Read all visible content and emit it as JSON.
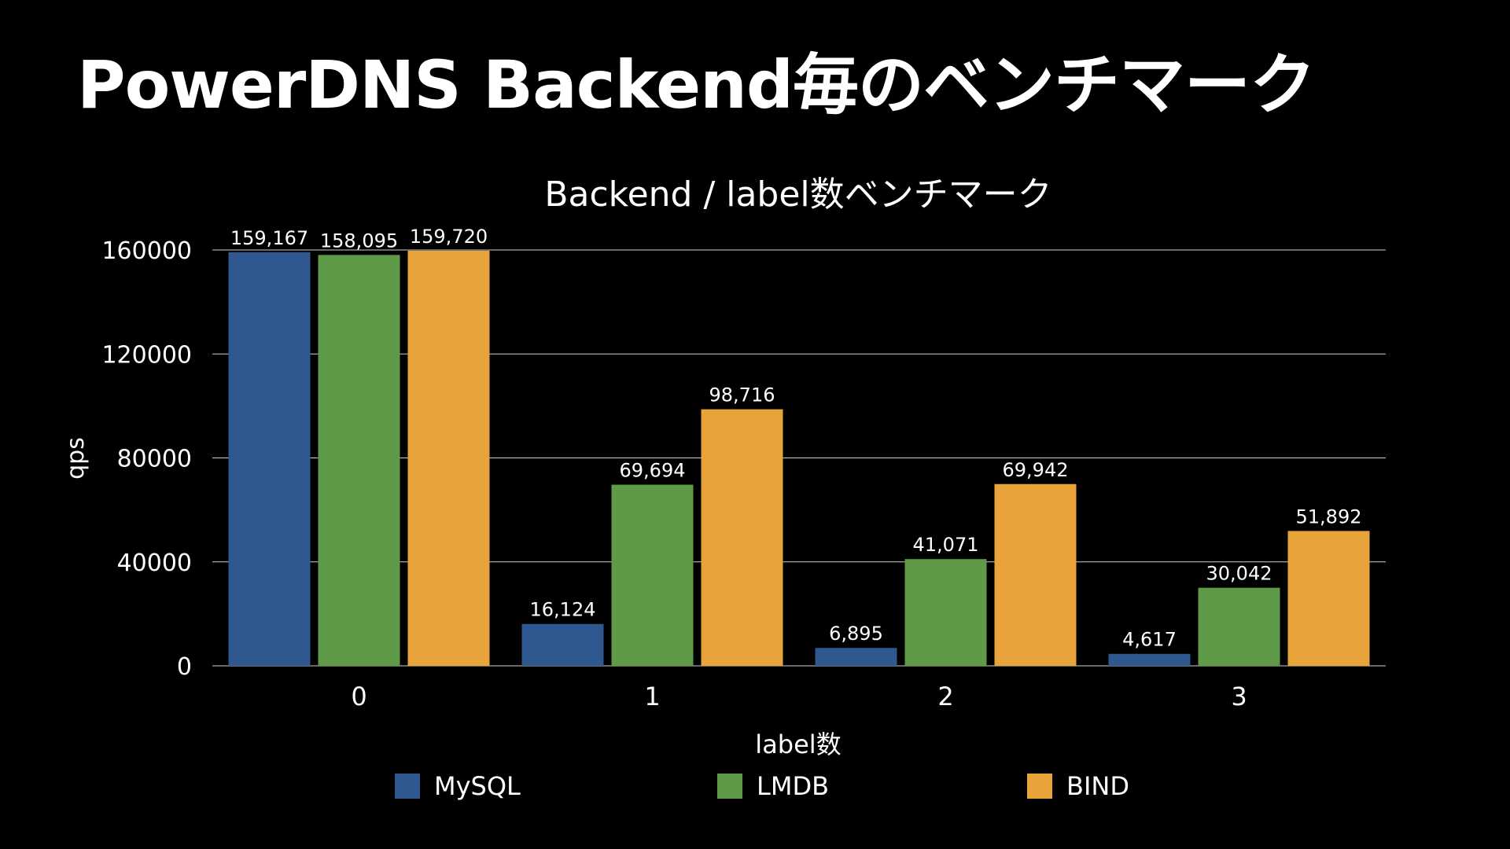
{
  "slide": {
    "title": "PowerDNS Backend毎のベンチマーク"
  },
  "chart_data": {
    "type": "bar",
    "title": "Backend / label数ベンチマーク",
    "xlabel": "label数",
    "ylabel": "qps",
    "categories": [
      "0",
      "1",
      "2",
      "3"
    ],
    "series": [
      {
        "name": "MySQL",
        "color": "#2f5790",
        "values": [
          159167,
          16124,
          6895,
          4617
        ],
        "labels": [
          "159,167",
          "16,124",
          "6,895",
          "4,617"
        ]
      },
      {
        "name": "LMDB",
        "color": "#5e9a48",
        "values": [
          158095,
          69694,
          41071,
          30042
        ],
        "labels": [
          "158,095",
          "69,694",
          "41,071",
          "30,042"
        ]
      },
      {
        "name": "BIND",
        "color": "#e8a33b",
        "values": [
          159720,
          98716,
          69942,
          51892
        ],
        "labels": [
          "159,720",
          "98,716",
          "69,942",
          "51,892"
        ]
      }
    ],
    "ylim": [
      0,
      160000
    ],
    "yticks": [
      "0",
      "40000",
      "80000",
      "120000",
      "160000"
    ],
    "grid": true,
    "legend": "bottom"
  }
}
